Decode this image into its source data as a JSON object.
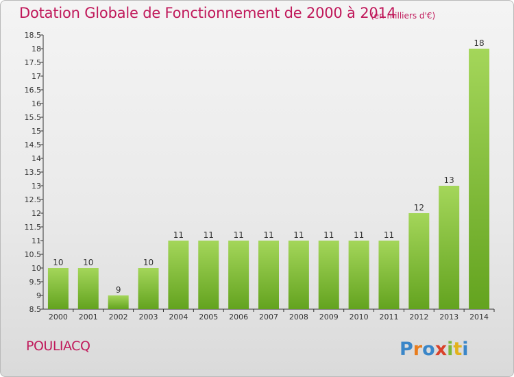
{
  "header": {
    "title": "Dotation Globale de Fonctionnement de 2000 à 2014",
    "subtitle": "(en milliers d'€)"
  },
  "footer": {
    "commune": "POULIACQ",
    "logo_text": "Proxiti"
  },
  "colors": {
    "title": "#c0185a",
    "bar_light": "#a4d65a",
    "bar_dark": "#63a31f",
    "axis": "#333333"
  },
  "chart_data": {
    "type": "bar",
    "title": "Dotation Globale de Fonctionnement de 2000 à 2014",
    "subtitle": "(en milliers d'€)",
    "categories": [
      "2000",
      "2001",
      "2002",
      "2003",
      "2004",
      "2005",
      "2006",
      "2007",
      "2008",
      "2009",
      "2010",
      "2011",
      "2012",
      "2013",
      "2014"
    ],
    "values": [
      10,
      10,
      9,
      10,
      11,
      11,
      11,
      11,
      11,
      11,
      11,
      11,
      12,
      13,
      18
    ],
    "ylim": [
      8.5,
      18.5
    ],
    "yticks": [
      "8.5",
      "9",
      "9.5",
      "10",
      "10.5",
      "11",
      "11.5",
      "12",
      "12.5",
      "13",
      "13.5",
      "14",
      "14.5",
      "15",
      "15.5",
      "16",
      "16.5",
      "17",
      "17.5",
      "18",
      "18.5"
    ],
    "grid": false,
    "legend": "none"
  }
}
